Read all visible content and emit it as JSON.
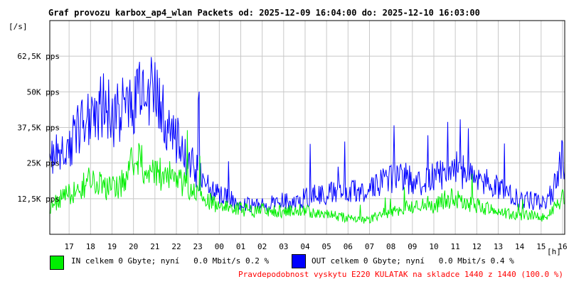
{
  "header": {
    "title": "Graf provozu karbox_ap4_wlan Packets od: 2025-12-09 16:04:00 do: 2025-12-10 16:03:00"
  },
  "colors": {
    "in_series": "#00ee00",
    "out_series": "#0000ff",
    "grid": "#c8c8c8",
    "axis": "#000000",
    "note": "#ff0000"
  },
  "chart_data": {
    "type": "line",
    "ylabel": "[/s]",
    "xlabel": "[h]",
    "x_ticks": [
      "17",
      "18",
      "19",
      "20",
      "21",
      "22",
      "23",
      "00",
      "01",
      "02",
      "03",
      "04",
      "05",
      "06",
      "07",
      "08",
      "09",
      "10",
      "11",
      "12",
      "13",
      "14",
      "15",
      "16"
    ],
    "y_ticks": [
      {
        "value": 12500,
        "label": "12,5K pps"
      },
      {
        "value": 25000,
        "label": "25K pps"
      },
      {
        "value": 37500,
        "label": "37,5K pps"
      },
      {
        "value": 50000,
        "label": "50K pps"
      },
      {
        "value": 62500,
        "label": "62,5K pps"
      }
    ],
    "ylim": [
      0,
      75000
    ],
    "grid": true,
    "x_hours": [
      16.1,
      16.5,
      17,
      17.5,
      18,
      18.5,
      19,
      19.5,
      20,
      20.5,
      21,
      21.5,
      22,
      22.5,
      23,
      23.5,
      24,
      24.5,
      25,
      25.5,
      26,
      26.5,
      27,
      27.5,
      28,
      28.5,
      29,
      29.5,
      30,
      30.5,
      31,
      31.5,
      32,
      32.5,
      33,
      33.5,
      34,
      34.5,
      35,
      35.5,
      36,
      36.5,
      37,
      37.5,
      38,
      38.5,
      39,
      39.5,
      40,
      40.1
    ],
    "series": [
      {
        "name": "IN celkem 0 Gbyte; nyní 0.0 Mbit/s 0.2 %",
        "color": "#00ee00",
        "values": [
          10000,
          12000,
          14000,
          16000,
          19000,
          17000,
          16000,
          18000,
          27000,
          24000,
          21000,
          21000,
          20000,
          17000,
          14000,
          12000,
          10000,
          9000,
          9000,
          8000,
          8500,
          8000,
          8000,
          8000,
          8500,
          7000,
          7000,
          6500,
          5500,
          5000,
          5000,
          7000,
          8000,
          9000,
          10000,
          11000,
          10000,
          12000,
          13000,
          11000,
          10000,
          9000,
          8000,
          7000,
          6500,
          7000,
          6000,
          8000,
          13000,
          12000
        ]
      },
      {
        "name": "OUT celkem 0 Gbyte; nyní 0.0 Mbit/s 0.4 %",
        "color": "#0000ff",
        "values": [
          30000,
          27000,
          30000,
          38000,
          44000,
          45000,
          42000,
          43000,
          48000,
          52000,
          48000,
          40000,
          34000,
          26000,
          22000,
          17000,
          14000,
          12000,
          11000,
          10000,
          10000,
          11000,
          12000,
          11000,
          13000,
          14000,
          14000,
          15000,
          15000,
          15000,
          16000,
          18000,
          19000,
          20000,
          19000,
          18000,
          20000,
          22000,
          24000,
          21000,
          20000,
          18000,
          16000,
          14000,
          12000,
          12000,
          11000,
          14000,
          28000,
          25000
        ]
      }
    ]
  },
  "legend": {
    "in_label": "IN celkem 0 Gbyte; nyní   0.0 Mbit/s 0.2 %",
    "out_label": "OUT celkem 0 Gbyte; nyní   0.0 Mbit/s 0.4 %"
  },
  "footer": {
    "note": "Pravdepodobnost vyskytu E220 KULATAK na skladce 1440 z 1440 (100.0 %)"
  }
}
